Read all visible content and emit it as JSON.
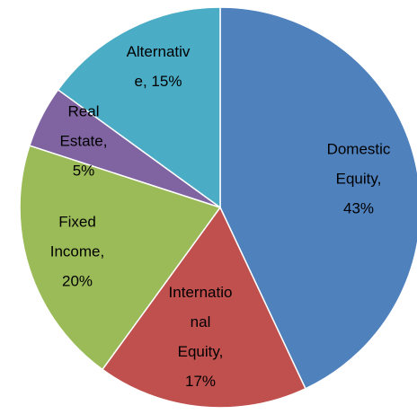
{
  "chart_data": {
    "type": "pie",
    "values": [
      43,
      17,
      20,
      5,
      15
    ],
    "value_labels": [
      "Domestic Equity, 43%",
      "International Equity, 17%",
      "Fixed Income, 20%",
      "Real Estate, 5%",
      "Alternative, 15%"
    ],
    "colors": [
      "#4f81bd",
      "#c0504d",
      "#9bbb59",
      "#8064a2",
      "#4bacc6"
    ]
  }
}
